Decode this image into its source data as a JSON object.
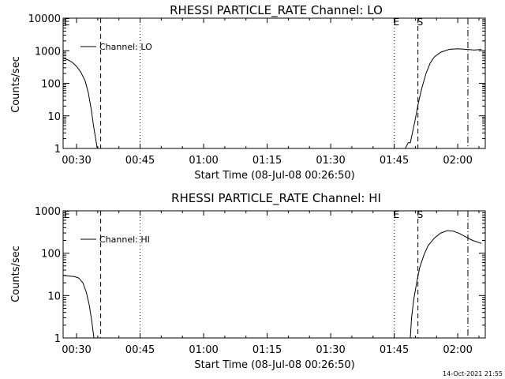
{
  "chart_data": [
    {
      "type": "line",
      "title": "RHESSI PARTICLE_RATE Channel: LO",
      "xlabel": "Start Time (08-Jul-08 00:26:50)",
      "ylabel": "Counts/sec",
      "yscale": "log",
      "ylim": [
        1,
        10000
      ],
      "xlim": [
        26.83,
        126.5
      ],
      "x_ticks": [
        {
          "label": "00:30",
          "x": 30
        },
        {
          "label": "00:45",
          "x": 45
        },
        {
          "label": "01:00",
          "x": 60
        },
        {
          "label": "01:15",
          "x": 75
        },
        {
          "label": "01:30",
          "x": 90
        },
        {
          "label": "01:45",
          "x": 105
        },
        {
          "label": "02:00",
          "x": 120
        }
      ],
      "y_ticks": [
        {
          "label": "1",
          "y": 1
        },
        {
          "label": "10",
          "y": 10
        },
        {
          "label": "100",
          "y": 100
        },
        {
          "label": "1000",
          "y": 1000
        },
        {
          "label": "10000",
          "y": 10000
        }
      ],
      "legend": "top-left",
      "grid": false,
      "series": [
        {
          "name": "Channel: LO",
          "segments": [
            [
              [
                26.83,
                600
              ],
              [
                28,
                520
              ],
              [
                29,
                440
              ],
              [
                30,
                330
              ],
              [
                31,
                220
              ],
              [
                32,
                120
              ],
              [
                32.8,
                50
              ],
              [
                33.5,
                15
              ],
              [
                34,
                5
              ],
              [
                34.5,
                2
              ],
              [
                34.9,
                1
              ]
            ],
            [
              [
                107.6,
                1
              ],
              [
                108.3,
                1.5
              ],
              [
                108.8,
                1.5
              ],
              [
                109.3,
                3
              ],
              [
                110,
                8
              ],
              [
                110.7,
                25
              ],
              [
                111.5,
                70
              ],
              [
                112.5,
                200
              ],
              [
                113.5,
                420
              ],
              [
                114.5,
                650
              ],
              [
                116,
                900
              ],
              [
                118,
                1100
              ],
              [
                120,
                1150
              ],
              [
                122,
                1100
              ],
              [
                124,
                1050
              ],
              [
                125.6,
                1100
              ]
            ]
          ]
        }
      ],
      "annotations": [
        {
          "text": "E",
          "x": 27.2,
          "line_x": null,
          "style": "none"
        },
        {
          "text": "",
          "x": 35.7,
          "line_x": 35.7,
          "style": "dashed"
        },
        {
          "text": "",
          "x": 45.0,
          "line_x": 45.0,
          "style": "dotted"
        },
        {
          "text": "E",
          "x": 105,
          "line_x": 105,
          "style": "dotted"
        },
        {
          "text": "S",
          "x": 110.6,
          "line_x": 110.6,
          "style": "dashed"
        },
        {
          "text": "",
          "x": 122.4,
          "line_x": 122.4,
          "style": "dashdot"
        }
      ]
    },
    {
      "type": "line",
      "title": "RHESSI PARTICLE_RATE Channel: HI",
      "xlabel": "Start Time (08-Jul-08 00:26:50)",
      "ylabel": "Counts/sec",
      "yscale": "log",
      "ylim": [
        1,
        1000
      ],
      "xlim": [
        26.83,
        126.5
      ],
      "x_ticks": [
        {
          "label": "00:30",
          "x": 30
        },
        {
          "label": "00:45",
          "x": 45
        },
        {
          "label": "01:00",
          "x": 60
        },
        {
          "label": "01:15",
          "x": 75
        },
        {
          "label": "01:30",
          "x": 90
        },
        {
          "label": "01:45",
          "x": 105
        },
        {
          "label": "02:00",
          "x": 120
        }
      ],
      "y_ticks": [
        {
          "label": "1",
          "y": 1
        },
        {
          "label": "10",
          "y": 10
        },
        {
          "label": "100",
          "y": 100
        },
        {
          "label": "1000",
          "y": 1000
        }
      ],
      "legend": "top-left",
      "grid": false,
      "series": [
        {
          "name": "Channel: HI",
          "segments": [
            [
              [
                26.83,
                30
              ],
              [
                28,
                29
              ],
              [
                29.5,
                28
              ],
              [
                30.5,
                26
              ],
              [
                31.5,
                20
              ],
              [
                32.3,
                12
              ],
              [
                33,
                6
              ],
              [
                33.6,
                2.5
              ],
              [
                34.1,
                1
              ]
            ],
            [
              [
                108.8,
                1
              ],
              [
                109.1,
                3
              ],
              [
                109.6,
                8
              ],
              [
                110.3,
                20
              ],
              [
                111,
                45
              ],
              [
                112,
                90
              ],
              [
                113,
                150
              ],
              [
                114.5,
                230
              ],
              [
                116,
                300
              ],
              [
                117.5,
                340
              ],
              [
                119,
                330
              ],
              [
                120.5,
                290
              ],
              [
                122,
                240
              ],
              [
                123.5,
                200
              ],
              [
                125.6,
                170
              ]
            ]
          ]
        }
      ],
      "annotations": [
        {
          "text": "E",
          "x": 27.2,
          "line_x": null,
          "style": "none"
        },
        {
          "text": "",
          "x": 35.7,
          "line_x": 35.7,
          "style": "dashed"
        },
        {
          "text": "",
          "x": 45.0,
          "line_x": 45.0,
          "style": "dotted"
        },
        {
          "text": "E",
          "x": 105,
          "line_x": 105,
          "style": "dotted"
        },
        {
          "text": "S",
          "x": 110.6,
          "line_x": 110.6,
          "style": "dashed"
        },
        {
          "text": "",
          "x": 122.4,
          "line_x": 122.4,
          "style": "dashdot"
        }
      ]
    }
  ],
  "footer": {
    "timestamp": "14-Oct-2021 21:55"
  }
}
